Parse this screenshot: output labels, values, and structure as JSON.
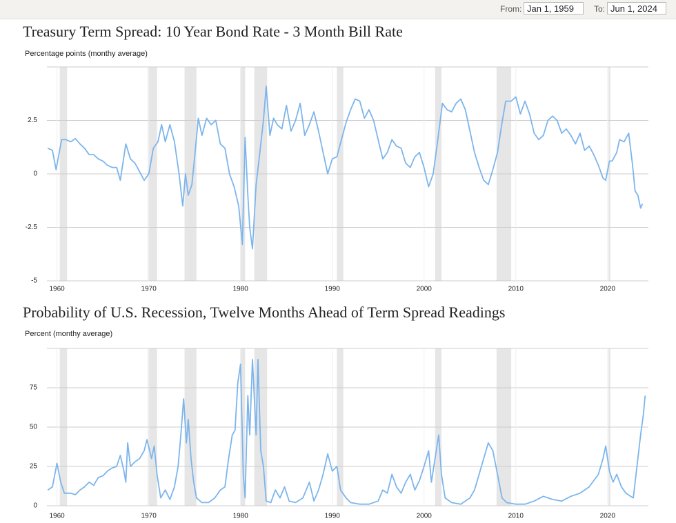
{
  "date_range": {
    "from_label": "From:",
    "from": "Jan 1, 1959",
    "to_label": "To:",
    "to": "Jun 1, 2024"
  },
  "chart_data": [
    {
      "type": "line",
      "title": "Treasury Term Spread: 10 Year Bond Rate - 3 Month Bill Rate",
      "subtitle": "Percentage points (monthy average)",
      "color": "#7cb5ec",
      "grid": true,
      "xlim": [
        1958.9,
        2024.45
      ],
      "ylim": [
        -5,
        5
      ],
      "xticks": [
        1960,
        1970,
        1980,
        1990,
        2000,
        2010,
        2020
      ],
      "yticks": [
        -5,
        -2.5,
        0,
        2.5
      ],
      "recessions": [
        [
          1960.3,
          1961.1
        ],
        [
          1969.9,
          1970.9
        ],
        [
          1973.9,
          1975.2
        ],
        [
          1980.0,
          1980.5
        ],
        [
          1981.5,
          1982.9
        ],
        [
          1990.5,
          1991.2
        ],
        [
          2001.2,
          2001.9
        ],
        [
          2007.9,
          2009.5
        ],
        [
          2020.1,
          2020.3
        ]
      ],
      "x": [
        1959.0,
        1959.5,
        1959.9,
        1960.5,
        1961.0,
        1961.5,
        1962.0,
        1962.5,
        1963.0,
        1963.5,
        1964.0,
        1964.5,
        1965.0,
        1965.5,
        1966.0,
        1966.5,
        1966.9,
        1967.5,
        1968.0,
        1968.5,
        1969.0,
        1969.5,
        1970.0,
        1970.5,
        1971.0,
        1971.4,
        1971.8,
        1972.3,
        1972.8,
        1973.3,
        1973.7,
        1974.0,
        1974.3,
        1974.7,
        1975.0,
        1975.4,
        1975.8,
        1976.3,
        1976.8,
        1977.3,
        1977.8,
        1978.3,
        1978.8,
        1979.3,
        1979.8,
        1980.2,
        1980.5,
        1980.8,
        1981.0,
        1981.3,
        1981.7,
        1982.0,
        1982.5,
        1982.8,
        1983.2,
        1983.6,
        1984.0,
        1984.5,
        1985.0,
        1985.5,
        1986.0,
        1986.5,
        1987.0,
        1987.5,
        1988.0,
        1988.5,
        1989.0,
        1989.5,
        1990.0,
        1990.5,
        1991.0,
        1991.5,
        1992.0,
        1992.5,
        1993.0,
        1993.5,
        1994.0,
        1994.5,
        1995.0,
        1995.5,
        1996.0,
        1996.5,
        1997.0,
        1997.5,
        1998.0,
        1998.5,
        1999.0,
        1999.5,
        2000.0,
        2000.5,
        2001.0,
        2001.5,
        2002.0,
        2002.5,
        2003.0,
        2003.5,
        2004.0,
        2004.5,
        2005.0,
        2005.5,
        2006.0,
        2006.5,
        2007.0,
        2007.5,
        2008.0,
        2008.5,
        2008.9,
        2009.5,
        2010.0,
        2010.5,
        2011.0,
        2011.5,
        2012.0,
        2012.5,
        2013.0,
        2013.5,
        2014.0,
        2014.5,
        2015.0,
        2015.5,
        2016.0,
        2016.5,
        2017.0,
        2017.5,
        2018.0,
        2018.5,
        2019.0,
        2019.5,
        2019.8,
        2020.2,
        2020.5,
        2021.0,
        2021.3,
        2021.8,
        2022.3,
        2022.7,
        2023.0,
        2023.3,
        2023.6,
        2023.8
      ],
      "values": [
        1.2,
        1.1,
        0.2,
        1.6,
        1.6,
        1.5,
        1.65,
        1.4,
        1.2,
        0.9,
        0.9,
        0.7,
        0.6,
        0.4,
        0.3,
        0.3,
        -0.3,
        1.4,
        0.7,
        0.5,
        0.1,
        -0.3,
        0.0,
        1.2,
        1.5,
        2.3,
        1.5,
        2.3,
        1.5,
        0.0,
        -1.5,
        0.0,
        -1.0,
        -0.5,
        0.8,
        2.6,
        1.8,
        2.6,
        2.3,
        2.5,
        1.4,
        1.2,
        0.0,
        -0.6,
        -1.5,
        -3.3,
        1.7,
        -1.0,
        -2.5,
        -3.5,
        -0.5,
        0.6,
        2.5,
        4.1,
        1.8,
        2.6,
        2.3,
        2.1,
        3.2,
        2.0,
        2.5,
        3.3,
        1.8,
        2.3,
        2.9,
        2.0,
        1.0,
        0.0,
        0.7,
        0.8,
        1.6,
        2.4,
        3.0,
        3.5,
        3.4,
        2.6,
        3.0,
        2.5,
        1.6,
        0.7,
        1.0,
        1.6,
        1.3,
        1.2,
        0.5,
        0.3,
        0.8,
        1.0,
        0.3,
        -0.6,
        0.0,
        1.6,
        3.3,
        3.0,
        2.9,
        3.3,
        3.5,
        3.0,
        2.0,
        1.0,
        0.3,
        -0.3,
        -0.5,
        0.2,
        1.0,
        2.4,
        3.4,
        3.4,
        3.6,
        2.8,
        3.4,
        2.8,
        1.9,
        1.6,
        1.8,
        2.5,
        2.7,
        2.5,
        1.9,
        2.1,
        1.8,
        1.4,
        1.9,
        1.1,
        1.3,
        0.9,
        0.4,
        -0.2,
        -0.3,
        0.6,
        0.6,
        1.0,
        1.6,
        1.5,
        1.9,
        0.5,
        -0.8,
        -1.0,
        -1.6,
        -1.4
      ]
    },
    {
      "type": "line",
      "title": "Probability of U.S. Recession, Twelve Months Ahead of Term Spread Readings",
      "subtitle": "Percent (monthy average)",
      "color": "#7cb5ec",
      "grid": true,
      "xlim": [
        1958.9,
        2024.45
      ],
      "ylim": [
        0,
        100
      ],
      "xticks": [
        1960,
        1970,
        1980,
        1990,
        2000,
        2010,
        2020
      ],
      "yticks": [
        0,
        25,
        50,
        75
      ],
      "recessions": [
        [
          1960.3,
          1961.1
        ],
        [
          1969.9,
          1970.9
        ],
        [
          1973.9,
          1975.2
        ],
        [
          1980.0,
          1980.5
        ],
        [
          1981.5,
          1982.9
        ],
        [
          1990.5,
          1991.2
        ],
        [
          2001.2,
          2001.9
        ],
        [
          2007.9,
          2009.5
        ],
        [
          2020.1,
          2020.3
        ]
      ],
      "x": [
        1959.0,
        1959.5,
        1960.0,
        1960.4,
        1960.8,
        1961.5,
        1962.0,
        1962.5,
        1963.0,
        1963.5,
        1964.0,
        1964.5,
        1965.0,
        1965.5,
        1966.0,
        1966.5,
        1966.9,
        1967.3,
        1967.5,
        1967.7,
        1968.0,
        1968.5,
        1969.0,
        1969.5,
        1969.8,
        1970.3,
        1970.6,
        1970.9,
        1971.3,
        1971.8,
        1972.3,
        1972.8,
        1973.2,
        1973.5,
        1973.8,
        1974.1,
        1974.3,
        1974.6,
        1974.9,
        1975.2,
        1975.8,
        1976.5,
        1977.2,
        1977.8,
        1978.3,
        1978.7,
        1979.1,
        1979.4,
        1979.7,
        1980.0,
        1980.3,
        1980.5,
        1980.8,
        1981.0,
        1981.3,
        1981.7,
        1981.9,
        1982.2,
        1982.5,
        1982.8,
        1983.3,
        1983.8,
        1984.3,
        1984.8,
        1985.3,
        1986.0,
        1986.8,
        1987.5,
        1988.0,
        1988.5,
        1989.0,
        1989.5,
        1990.0,
        1990.5,
        1990.9,
        1991.5,
        1992.0,
        1993.0,
        1994.0,
        1995.0,
        1995.5,
        1996.0,
        1996.5,
        1997.0,
        1997.5,
        1998.0,
        1998.5,
        1999.0,
        1999.5,
        2000.0,
        2000.5,
        2000.8,
        2001.2,
        2001.6,
        2001.9,
        2002.3,
        2003.0,
        2004.0,
        2005.0,
        2005.5,
        2006.0,
        2006.5,
        2007.0,
        2007.5,
        2008.0,
        2008.5,
        2009.0,
        2010.0,
        2011.0,
        2012.0,
        2013.0,
        2014.0,
        2015.0,
        2016.0,
        2017.0,
        2018.0,
        2018.5,
        2019.0,
        2019.5,
        2019.8,
        2020.2,
        2020.6,
        2021.0,
        2021.5,
        2022.0,
        2022.5,
        2022.8,
        2023.2,
        2023.6,
        2023.9,
        2024.1
      ],
      "values": [
        10,
        12,
        27,
        15,
        8,
        8,
        7,
        10,
        12,
        15,
        13,
        18,
        19,
        22,
        24,
        25,
        32,
        22,
        15,
        40,
        25,
        28,
        30,
        35,
        42,
        30,
        38,
        20,
        5,
        10,
        4,
        12,
        25,
        45,
        68,
        40,
        55,
        30,
        15,
        5,
        2,
        2,
        5,
        10,
        12,
        30,
        45,
        48,
        78,
        90,
        20,
        5,
        70,
        45,
        93,
        45,
        93,
        35,
        25,
        3,
        2,
        10,
        5,
        12,
        3,
        2,
        5,
        15,
        3,
        10,
        20,
        33,
        22,
        25,
        10,
        5,
        2,
        1,
        1,
        3,
        10,
        8,
        20,
        12,
        8,
        15,
        20,
        10,
        16,
        25,
        35,
        15,
        30,
        45,
        20,
        5,
        2,
        1,
        5,
        10,
        20,
        30,
        40,
        35,
        20,
        5,
        2,
        1,
        1,
        3,
        6,
        4,
        3,
        6,
        8,
        12,
        16,
        20,
        30,
        38,
        22,
        15,
        20,
        12,
        8,
        6,
        5,
        25,
        45,
        58,
        70
      ]
    }
  ]
}
